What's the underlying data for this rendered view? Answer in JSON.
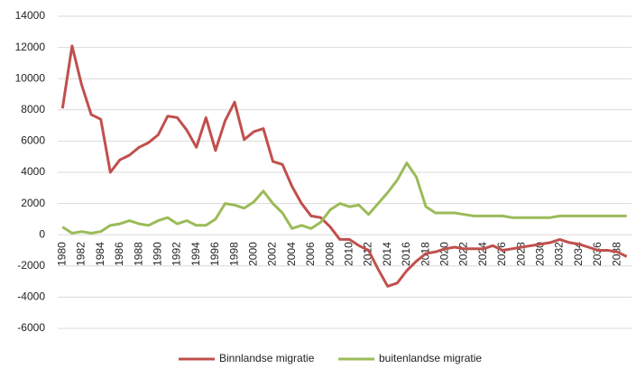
{
  "chart_data": {
    "type": "line",
    "categories": [
      "1980",
      null,
      "1982",
      null,
      "1984",
      null,
      "1986",
      null,
      "1988",
      null,
      "1990",
      null,
      "1992",
      null,
      "1994",
      null,
      "1996",
      null,
      "1998",
      null,
      "2000",
      null,
      "2002",
      null,
      "2004",
      null,
      "2006",
      null,
      "2008",
      null,
      "2010",
      null,
      "2012",
      null,
      "2014",
      null,
      "2016",
      null,
      "2018",
      null,
      "2020",
      null,
      "2022",
      null,
      "2024",
      null,
      "2026",
      null,
      "2028",
      null,
      "2030",
      null,
      "2032",
      null,
      "2034",
      null,
      "2036",
      null,
      "2038",
      null
    ],
    "series": [
      {
        "name": "Binnlandse migratie",
        "color": "#c0504d",
        "values": [
          8100,
          12100,
          9600,
          7700,
          7400,
          4000,
          4800,
          5100,
          5600,
          5900,
          6400,
          7600,
          7500,
          6700,
          5600,
          7500,
          5400,
          7300,
          8500,
          6100,
          6600,
          6800,
          4700,
          4500,
          3100,
          2000,
          1200,
          1100,
          500,
          -300,
          -300,
          -700,
          -1000,
          -2200,
          -3300,
          -3100,
          -2300,
          -1700,
          -1200,
          -1100,
          -900,
          -800,
          -900,
          -900,
          -900,
          -700,
          -1000,
          -900,
          -800,
          -700,
          -600,
          -500,
          -300,
          -500,
          -600,
          -800,
          -1000,
          -1000,
          -1100,
          -1400
        ]
      },
      {
        "name": "buitenlandse migratie",
        "color": "#9bbb59",
        "values": [
          500,
          100,
          200,
          100,
          200,
          600,
          700,
          900,
          700,
          600,
          900,
          1100,
          700,
          900,
          600,
          600,
          1000,
          2000,
          1900,
          1700,
          2100,
          2800,
          2000,
          1400,
          400,
          600,
          400,
          800,
          1600,
          2000,
          1800,
          1900,
          1300,
          2000,
          2700,
          3500,
          4600,
          3700,
          1800,
          1400,
          1400,
          1400,
          1300,
          1200,
          1200,
          1200,
          1200,
          1100,
          1100,
          1100,
          1100,
          1100,
          1200,
          1200,
          1200,
          1200,
          1200,
          1200,
          1200,
          1200
        ]
      }
    ],
    "ylim": [
      -6000,
      14000
    ],
    "yticks": [
      -6000,
      -4000,
      -2000,
      0,
      2000,
      4000,
      6000,
      8000,
      10000,
      12000,
      14000
    ],
    "grid": true,
    "legend": "bottom"
  }
}
